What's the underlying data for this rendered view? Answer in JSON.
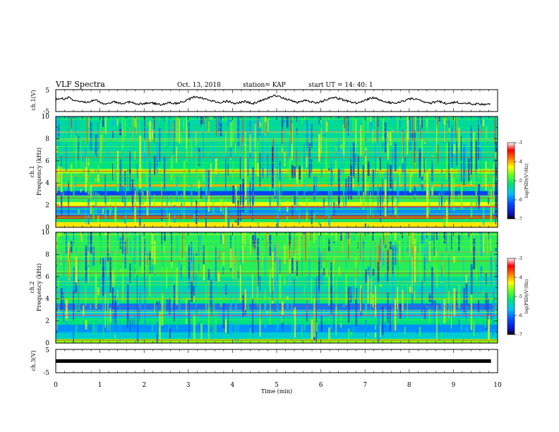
{
  "header": {
    "title": "VLF Spectra",
    "date": "Oct. 13, 2018",
    "station": "station= KAP",
    "start_time": "start  UT =   14: 40: 1"
  },
  "chart_data": [
    {
      "type": "line",
      "panel": "ch1-voltage",
      "ylabel": "ch.1(V)",
      "ylim": [
        -5,
        5
      ],
      "yticks": [
        "5",
        "-5"
      ],
      "xlim": [
        0,
        10
      ],
      "trace": [
        0.5,
        1.1,
        0.8,
        1.5,
        0.3,
        -0.2,
        -0.6,
        -0.9,
        -0.3,
        0.4,
        -0.8,
        -1.5,
        -1.1,
        -0.5,
        -0.9,
        -1.3,
        -1.0,
        -0.6,
        -1.2,
        -1.6,
        -1.4,
        -0.9,
        -1.1,
        -1.5,
        -1.9,
        -1.2,
        -0.8,
        -1.4,
        -1.0,
        -0.5,
        0.2,
        1.4,
        1.8,
        1.2,
        0.9,
        0.3,
        -0.4,
        -1.0,
        -0.7,
        -0.2,
        -0.9,
        -1.3,
        -0.8,
        -0.3,
        -0.9,
        -1.2,
        -0.7,
        0.3,
        0.9,
        1.9,
        2.3,
        1.6,
        1.0,
        0.4,
        -0.3,
        -0.8,
        -0.4,
        0.1,
        -0.5,
        -1.1,
        -0.6,
        0.0,
        0.7,
        1.5,
        1.1,
        0.5,
        -0.1,
        -0.6,
        -1.1,
        -0.8,
        -0.3,
        0.6,
        1.3,
        0.9,
        0.2,
        -0.4,
        -0.9,
        -1.3,
        -0.7,
        -0.2,
        0.4,
        1.0,
        0.6,
        -0.1,
        -0.7,
        -1.2,
        -0.8,
        -0.4,
        -0.9,
        -1.4,
        -1.0,
        -0.6,
        -1.1,
        -1.5,
        -1.2,
        -1.8,
        -1.4,
        -1.7,
        -2.0,
        -1.6
      ]
    },
    {
      "type": "heatmap",
      "panel": "ch1-spectrogram",
      "ylabel": "ch.1\nFrequency (kHz)",
      "ylim": [
        0,
        10
      ],
      "yticks": [
        "0",
        "2",
        "4",
        "6",
        "8",
        "10"
      ],
      "xlim": [
        0,
        10
      ],
      "colorbar": {
        "label": "log(PSD)(V²/Hz)",
        "range": [
          -7,
          -3
        ],
        "ticks": [
          "-3",
          "-4",
          "-5",
          "-6",
          "-7"
        ]
      },
      "bands": [
        {
          "lo": 0.0,
          "hi": 0.5,
          "level": -4.2
        },
        {
          "lo": 0.5,
          "hi": 0.8,
          "level": -5.1
        },
        {
          "lo": 0.8,
          "hi": 1.1,
          "level": -3.4
        },
        {
          "lo": 1.1,
          "hi": 1.9,
          "level": -5.9
        },
        {
          "lo": 1.9,
          "hi": 2.3,
          "level": -4.3
        },
        {
          "lo": 2.3,
          "hi": 2.9,
          "level": -5.0
        },
        {
          "lo": 2.9,
          "hi": 3.3,
          "level": -6.3
        },
        {
          "lo": 3.3,
          "hi": 3.7,
          "level": -5.3
        },
        {
          "lo": 3.7,
          "hi": 3.9,
          "level": -4.0
        },
        {
          "lo": 3.9,
          "hi": 4.9,
          "level": -5.1
        },
        {
          "lo": 4.9,
          "hi": 5.3,
          "level": -4.5
        },
        {
          "lo": 5.3,
          "hi": 6.0,
          "level": -5.2
        },
        {
          "lo": 6.0,
          "hi": 10.0,
          "level": -5.3
        }
      ]
    },
    {
      "type": "heatmap",
      "panel": "ch2-spectrogram",
      "ylabel": "ch.2\nFrequency (kHz)",
      "ylim": [
        0,
        10
      ],
      "yticks": [
        "0",
        "2",
        "4",
        "6",
        "8",
        "10"
      ],
      "xlim": [
        0,
        10
      ],
      "colorbar": {
        "label": "log(PSD)(V²/Hz)",
        "range": [
          -7,
          -3
        ],
        "ticks": [
          "-3",
          "-4",
          "-5",
          "-6",
          "-7"
        ]
      },
      "bands": [
        {
          "lo": 0.0,
          "hi": 0.4,
          "level": -4.6
        },
        {
          "lo": 0.4,
          "hi": 1.0,
          "level": -5.5
        },
        {
          "lo": 1.0,
          "hi": 1.7,
          "level": -5.9
        },
        {
          "lo": 1.7,
          "hi": 2.3,
          "level": -5.2
        },
        {
          "lo": 2.3,
          "hi": 3.0,
          "level": -5.6
        },
        {
          "lo": 3.0,
          "hi": 3.6,
          "level": -6.0
        },
        {
          "lo": 3.6,
          "hi": 4.2,
          "level": -5.1
        },
        {
          "lo": 4.2,
          "hi": 5.0,
          "level": -5.4
        },
        {
          "lo": 5.0,
          "hi": 6.0,
          "level": -5.3
        },
        {
          "lo": 6.0,
          "hi": 10.0,
          "level": -5.0
        }
      ]
    },
    {
      "type": "line",
      "panel": "ch3-voltage",
      "ylabel": "ch.3(V)",
      "ylim": [
        -5,
        5
      ],
      "yticks": [
        "5",
        "-5"
      ],
      "xlim": [
        0,
        10
      ],
      "constant": 0
    }
  ],
  "xaxis": {
    "label": "Time (min)",
    "ticks": [
      "0",
      "1",
      "2",
      "3",
      "4",
      "5",
      "6",
      "7",
      "8",
      "9",
      "10"
    ]
  }
}
